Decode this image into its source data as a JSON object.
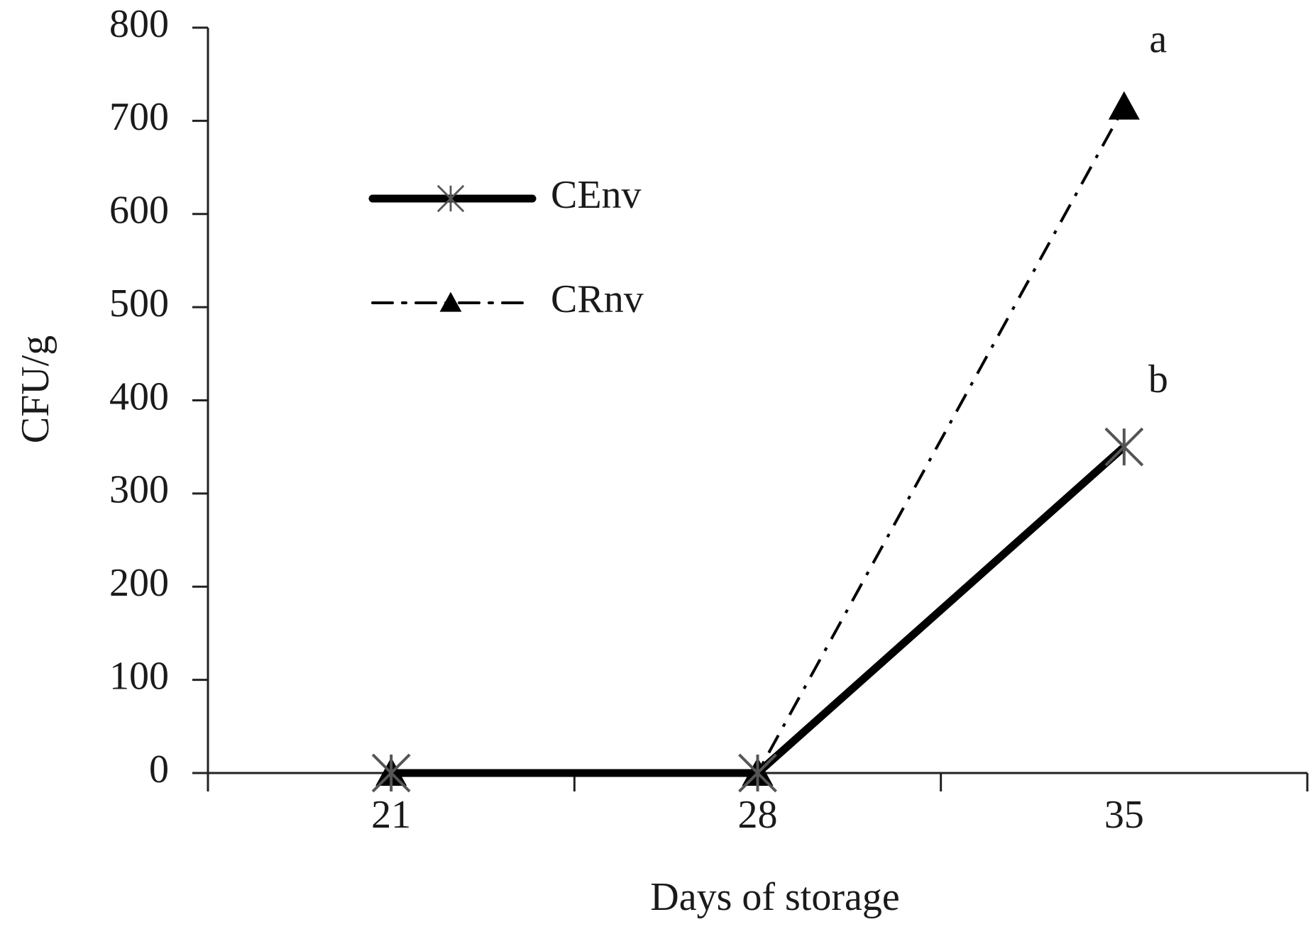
{
  "chart_data": {
    "type": "line",
    "x_label": "Days of storage",
    "y_label": "CFU/g",
    "categories": [
      "21",
      "28",
      "35"
    ],
    "series": [
      {
        "name": "CEnv",
        "color": "#000000",
        "marker_color": "#555555",
        "line_style": "solid",
        "marker": "star",
        "values": [
          0,
          0,
          350
        ]
      },
      {
        "name": "CRnv",
        "color": "#000000",
        "marker_color": "#000000",
        "line_style": "dashdot",
        "marker": "triangle",
        "values": [
          0,
          0,
          715
        ]
      }
    ],
    "annotations": [
      "b",
      "a"
    ],
    "ylim": [
      0,
      800
    ],
    "yticks": [
      0,
      100,
      200,
      300,
      400,
      500,
      600,
      700,
      800
    ],
    "grid": false
  }
}
